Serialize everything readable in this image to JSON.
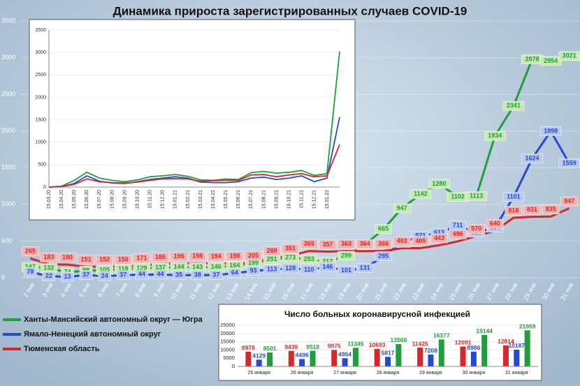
{
  "chart_data": [
    {
      "type": "line",
      "title": "Динамика прироста зарегистрированных случаев COVID-19",
      "categories": [
        "2 янв",
        "3 янв",
        "4 янв",
        "5 янв",
        "6 янв",
        "7 янв",
        "8 янв",
        "9 янв",
        "10 янв",
        "11 янв",
        "12 янв",
        "13 янв",
        "14 янв",
        "15 янв",
        "16 янв",
        "17 янв",
        "18 янв",
        "19 янв",
        "20 янв",
        "21 янв",
        "22 янв",
        "23 янв",
        "24 янв",
        "25 янв",
        "26 янв",
        "27 янв",
        "28 янв",
        "29 янв",
        "30 янв",
        "31 янв"
      ],
      "series": [
        {
          "name": "Ханты-Мансийский автономный округ — Югра",
          "color": "#1f9e3c",
          "values": [
            147,
            132,
            74,
            98,
            105,
            118,
            129,
            137,
            144,
            143,
            146,
            164,
            199,
            251,
            273,
            253,
            217,
            299,
            447,
            665,
            947,
            1142,
            1280,
            1102,
            1113,
            1934,
            2341,
            2978,
            2954,
            3021
          ]
        },
        {
          "name": "Ямало-Ненецкий автономный округ",
          "color": "#2449d6",
          "values": [
            79,
            22,
            13,
            37,
            24,
            37,
            44,
            44,
            35,
            38,
            37,
            64,
            93,
            113,
            128,
            110,
            146,
            101,
            131,
            295,
            477,
            571,
            613,
            711,
            616,
            684,
            1101,
            1624,
            1998,
            1559
          ]
        },
        {
          "name": "Тюменская область",
          "color": "#d62828",
          "values": [
            265,
            183,
            180,
            151,
            152,
            150,
            171,
            186,
            195,
            198,
            194,
            198,
            205,
            269,
            301,
            365,
            357,
            363,
            364,
            366,
            403,
            405,
            443,
            496,
            570,
            640,
            818,
            831,
            835,
            947
          ]
        }
      ],
      "ylim": [
        0,
        3500
      ],
      "yticks": [
        0,
        500,
        1000,
        1500,
        2000,
        2500,
        3000,
        3500
      ],
      "grid": true,
      "legend": "lower left"
    },
    {
      "type": "line",
      "categories": [
        "15.03.20",
        "15.04.20",
        "15.05.20",
        "15.06.20",
        "15.07.20",
        "15.08.20",
        "15.09.20",
        "15.10.20",
        "15.11.20",
        "15.12.20",
        "15.01.21",
        "15.02.21",
        "15.03.21",
        "15.04.21",
        "15.05.21",
        "15.06.21",
        "15.07.21",
        "15.08.21",
        "15.09.21",
        "15.10.21",
        "15.11.21",
        "15.12.21",
        "15.01.22",
        null
      ],
      "series": [
        {
          "color": "#1f9e3c",
          "values": [
            0,
            20,
            150,
            330,
            200,
            150,
            120,
            160,
            230,
            250,
            280,
            240,
            160,
            150,
            180,
            170,
            320,
            350,
            310,
            330,
            370,
            260,
            300,
            3021
          ]
        },
        {
          "color": "#2449d6",
          "values": [
            0,
            10,
            80,
            250,
            130,
            90,
            80,
            120,
            170,
            200,
            230,
            200,
            110,
            100,
            100,
            120,
            200,
            220,
            170,
            200,
            250,
            120,
            200,
            1559
          ]
        },
        {
          "color": "#d62828",
          "values": [
            0,
            10,
            60,
            180,
            120,
            100,
            90,
            110,
            150,
            180,
            190,
            180,
            130,
            140,
            150,
            150,
            270,
            280,
            230,
            270,
            300,
            230,
            250,
            947
          ]
        }
      ],
      "ylim": [
        0,
        3500
      ],
      "yticks": [
        0,
        500,
        1000,
        1500,
        2000,
        2500,
        3000,
        3500
      ],
      "grid": true
    },
    {
      "type": "bar",
      "title": "Число больных коронавирусной  инфекцией",
      "categories": [
        "25 января",
        "26 января",
        "27 января",
        "28 января",
        "29 января",
        "30 января",
        "31 января"
      ],
      "series": [
        {
          "color": "#d62828",
          "values": [
            8978,
            9439,
            9975,
            10693,
            11425,
            12091,
            12814
          ]
        },
        {
          "color": "#2449d6",
          "values": [
            4129,
            4496,
            4954,
            5817,
            7208,
            8986,
            10187
          ]
        },
        {
          "color": "#1f9e3c",
          "values": [
            8501,
            9518,
            11345,
            13560,
            16377,
            19144,
            21959
          ]
        }
      ],
      "ylim": [
        0,
        25000
      ],
      "yticks": [
        0,
        5000,
        10000,
        15000,
        20000,
        25000
      ],
      "grid": true
    }
  ]
}
